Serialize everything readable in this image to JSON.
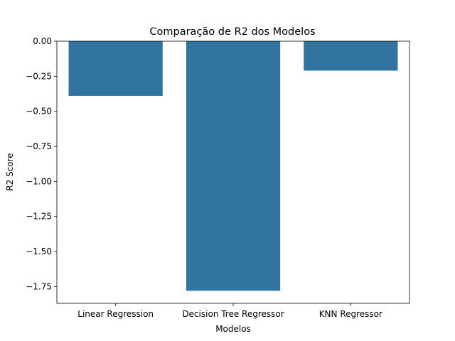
{
  "chart_data": {
    "type": "bar",
    "title": "Comparação de R2 dos Modelos",
    "xlabel": "Modelos",
    "ylabel": "R2 Score",
    "categories": [
      "Linear Regression",
      "Decision Tree Regressor",
      "KNN Regressor"
    ],
    "values": [
      -0.39,
      -1.78,
      -0.21
    ],
    "ylim": [
      -1.87,
      0.0
    ],
    "yticks": [
      0.0,
      -0.25,
      -0.5,
      -0.75,
      -1.0,
      -1.25,
      -1.5,
      -1.75
    ],
    "ytick_labels": [
      "0.00",
      "−0.25",
      "−0.50",
      "−0.75",
      "−1.00",
      "−1.25",
      "−1.50",
      "−1.75"
    ],
    "grid": false,
    "bar_color": "#3274a1"
  }
}
